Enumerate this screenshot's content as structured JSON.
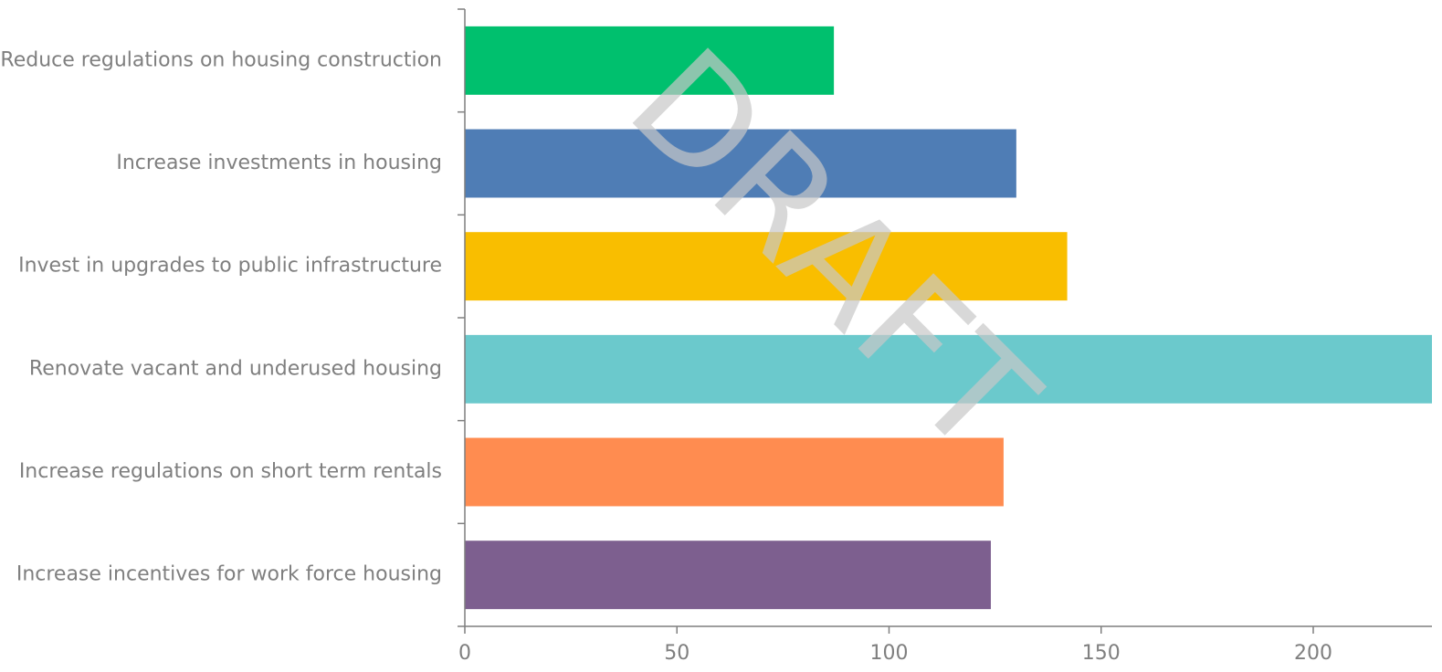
{
  "chart_data": {
    "type": "bar",
    "orientation": "horizontal",
    "categories": [
      "Reduce regulations on housing construction",
      "Increase investments in housing",
      "Invest in upgrades to public infrastructure",
      "Renovate vacant and underused housing",
      "Increase regulations on short term rentals",
      "Increase incentives for work force housing"
    ],
    "values": [
      87,
      130,
      142,
      230,
      127,
      124
    ],
    "colors": [
      "#00c06e",
      "#4f7db5",
      "#f9be00",
      "#6bc9cc",
      "#ff8c50",
      "#7d5f8f"
    ],
    "xlim": [
      0,
      228
    ],
    "xticks": [
      0,
      50,
      100,
      150,
      200
    ],
    "title": "",
    "xlabel": "",
    "ylabel": "",
    "grid": false,
    "legend": "none"
  },
  "watermark": "DRAFT"
}
